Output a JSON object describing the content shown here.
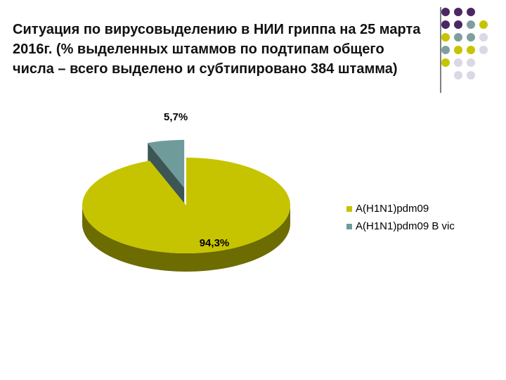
{
  "chart_data": {
    "type": "pie3d",
    "title": "Ситуация по вирусовыделению в НИИ гриппа на 25 марта 2016г. (% выделенных штаммов по подтипам общего числа – всего выделено и субтипировано 384 штамма)",
    "categories": [
      "A(H1N1)pdm09",
      "A(H1N1)pdm09 B vic"
    ],
    "values": [
      94.3,
      5.7
    ],
    "value_labels": [
      "94,3%",
      "5,7%"
    ],
    "colors": [
      "#c6c400",
      "#6f9b9b"
    ],
    "legend": "right"
  }
}
